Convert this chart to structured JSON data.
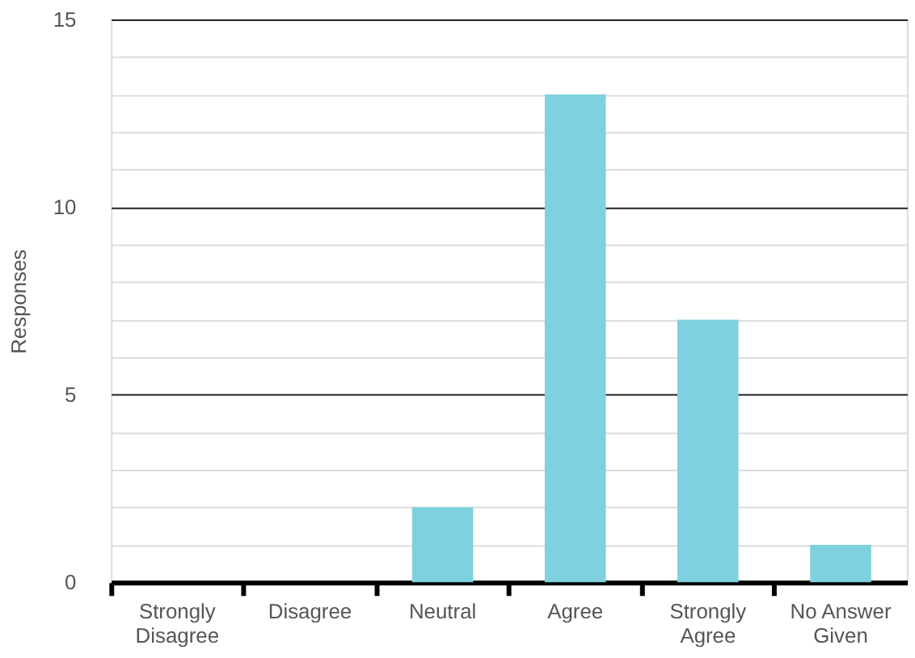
{
  "chart_data": {
    "type": "bar",
    "ylabel": "Responses",
    "categories": [
      "Strongly Disagree",
      "Disagree",
      "Neutral",
      "Agree",
      "Strongly Agree",
      "No Answer Given"
    ],
    "values": [
      0,
      0,
      2,
      13,
      7,
      1
    ],
    "color": "#7fd1df",
    "ylim": [
      0,
      15
    ],
    "yticks": [
      0,
      {
        "value": 1,
        "label": null
      },
      {
        "value": 2,
        "label": null
      },
      {
        "value": 3,
        "label": null
      },
      {
        "value": 4,
        "label": null
      },
      5,
      {
        "value": 6,
        "label": null
      },
      {
        "value": 7,
        "label": null
      },
      {
        "value": 8,
        "label": null
      },
      {
        "value": 9,
        "label": null
      },
      10,
      {
        "value": 11,
        "label": null
      },
      {
        "value": 12,
        "label": null
      },
      {
        "value": 13,
        "label": null
      },
      {
        "value": 14,
        "label": null
      },
      15
    ],
    "grid": true
  }
}
